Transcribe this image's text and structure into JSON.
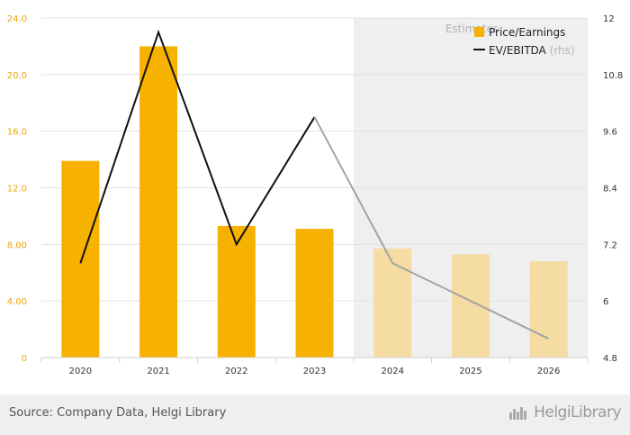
{
  "chart_data": {
    "type": "bar",
    "categories": [
      "2020",
      "2021",
      "2022",
      "2023",
      "2024",
      "2025",
      "2026"
    ],
    "series": [
      {
        "name": "Price/Earnings",
        "kind": "bar",
        "axis": "left",
        "values": [
          13.9,
          22.0,
          9.3,
          9.1,
          7.7,
          7.3,
          6.8
        ]
      },
      {
        "name": "EV/EBITDA",
        "kind": "line",
        "axis": "right",
        "values": [
          6.8,
          11.7,
          7.2,
          9.9,
          6.8,
          6.0,
          5.2
        ]
      }
    ],
    "estimate_start_index": 4,
    "estimate_label": "Estimates",
    "rhs_tag": "(rhs)",
    "y_left": {
      "min": 0,
      "max": 24,
      "ticks": [
        "0",
        "4.00",
        "8.00",
        "12.0",
        "16.0",
        "20.0",
        "24.0"
      ]
    },
    "y_right": {
      "min": 4.8,
      "max": 12,
      "ticks": [
        "4.8",
        "6",
        "7.2",
        "8.4",
        "9.6",
        "10.8",
        "12"
      ]
    },
    "legend_position": "top-right",
    "grid": "horizontal",
    "colors": {
      "bar": "#f7b100",
      "bar_estimate": "#f5dca3",
      "line": "#111111",
      "line_estimate": "#a3a3a3",
      "estimate_bg": "#efefef",
      "grid": "#e3e3e3",
      "left_tick": "#f0a500",
      "right_tick": "#333333"
    }
  },
  "footer": {
    "source": "Source: Company Data, Helgi Library",
    "logo_text": "HelgiLibrary"
  }
}
